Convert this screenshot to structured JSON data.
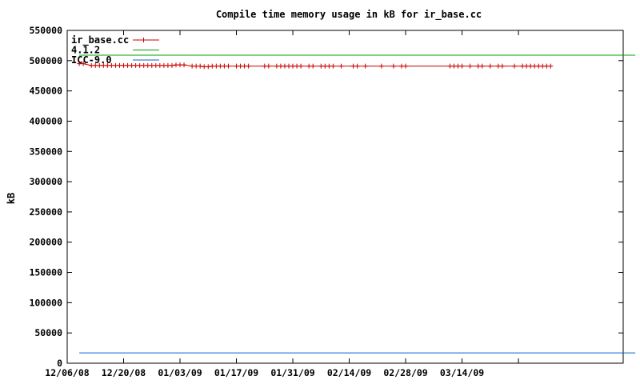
{
  "chart_data": {
    "type": "line",
    "title": "Compile time memory usage in kB for ir_base.cc",
    "xlabel": "",
    "ylabel": "kB",
    "xlim": [
      "2008-12-06",
      "2009-04-23"
    ],
    "ylim": [
      0,
      550000
    ],
    "grid": false,
    "legend_position": "top-left",
    "x_ticks": [
      "12/06/08",
      "12/20/08",
      "01/03/09",
      "01/17/09",
      "01/31/09",
      "02/14/09",
      "02/28/09",
      "03/14/09"
    ],
    "x_tick_dates": [
      "2008-12-06",
      "2008-12-20",
      "2009-01-03",
      "2009-01-17",
      "2009-01-31",
      "2009-02-14",
      "2009-02-28",
      "2009-03-14"
    ],
    "y_ticks": [
      0,
      50000,
      100000,
      150000,
      200000,
      250000,
      300000,
      350000,
      400000,
      450000,
      500000,
      550000
    ],
    "series": [
      {
        "name": "ir_base.cc",
        "color": "#cc0000",
        "marker": "plus",
        "x": [
          "2008-12-09",
          "2008-12-10",
          "2008-12-12",
          "2008-12-13",
          "2008-12-14",
          "2008-12-15",
          "2008-12-16",
          "2008-12-17",
          "2008-12-18",
          "2008-12-19",
          "2008-12-20",
          "2008-12-21",
          "2008-12-22",
          "2008-12-23",
          "2008-12-24",
          "2008-12-25",
          "2008-12-26",
          "2008-12-27",
          "2008-12-28",
          "2008-12-29",
          "2008-12-30",
          "2008-12-31",
          "2009-01-01",
          "2009-01-02",
          "2009-01-03",
          "2009-01-04",
          "2009-01-06",
          "2009-01-07",
          "2009-01-08",
          "2009-01-09",
          "2009-01-10",
          "2009-01-11",
          "2009-01-12",
          "2009-01-13",
          "2009-01-14",
          "2009-01-15",
          "2009-01-17",
          "2009-01-18",
          "2009-01-19",
          "2009-01-20",
          "2009-01-24",
          "2009-01-25",
          "2009-01-27",
          "2009-01-28",
          "2009-01-29",
          "2009-01-30",
          "2009-01-31",
          "2009-02-01",
          "2009-02-02",
          "2009-02-04",
          "2009-02-05",
          "2009-02-07",
          "2009-02-08",
          "2009-02-09",
          "2009-02-10",
          "2009-02-12",
          "2009-02-15",
          "2009-02-16",
          "2009-02-18",
          "2009-02-22",
          "2009-02-25",
          "2009-02-27",
          "2009-02-28",
          "2009-03-11",
          "2009-03-12",
          "2009-03-13",
          "2009-03-14",
          "2009-03-16",
          "2009-03-18",
          "2009-03-19",
          "2009-03-21",
          "2009-03-23",
          "2009-03-24",
          "2009-03-27",
          "2009-03-29",
          "2009-03-30",
          "2009-03-31",
          "2009-04-01",
          "2009-04-02",
          "2009-04-03",
          "2009-04-04",
          "2009-04-05"
        ],
        "values": [
          495000,
          495000,
          492000,
          492000,
          492000,
          492000,
          492000,
          492000,
          492000,
          492000,
          492000,
          492000,
          492000,
          492000,
          492000,
          492000,
          492000,
          492000,
          492000,
          492000,
          492000,
          492000,
          492000,
          493000,
          493000,
          493000,
          491000,
          491000,
          491000,
          490000,
          490000,
          491000,
          491000,
          491000,
          491000,
          491000,
          491000,
          491000,
          491000,
          491000,
          491000,
          491000,
          491000,
          491000,
          491000,
          491000,
          491000,
          491000,
          491000,
          491000,
          491000,
          491000,
          491000,
          491000,
          491000,
          491000,
          491000,
          491000,
          491000,
          491000,
          491000,
          491000,
          491000,
          491000,
          491000,
          491000,
          491000,
          491000,
          491000,
          491000,
          491000,
          491000,
          491000,
          491000,
          491000,
          491000,
          491000,
          491000,
          491000,
          491000,
          491000,
          491000
        ]
      },
      {
        "name": "4.1.2",
        "color": "#00a000",
        "marker": "none",
        "x": [
          "2008-12-09",
          "2009-04-26"
        ],
        "values": [
          509000,
          509000
        ]
      },
      {
        "name": "ICC-9.0",
        "color": "#0066cc",
        "marker": "none",
        "x": [
          "2008-12-09",
          "2009-04-26"
        ],
        "values": [
          17000,
          17000
        ]
      }
    ]
  }
}
